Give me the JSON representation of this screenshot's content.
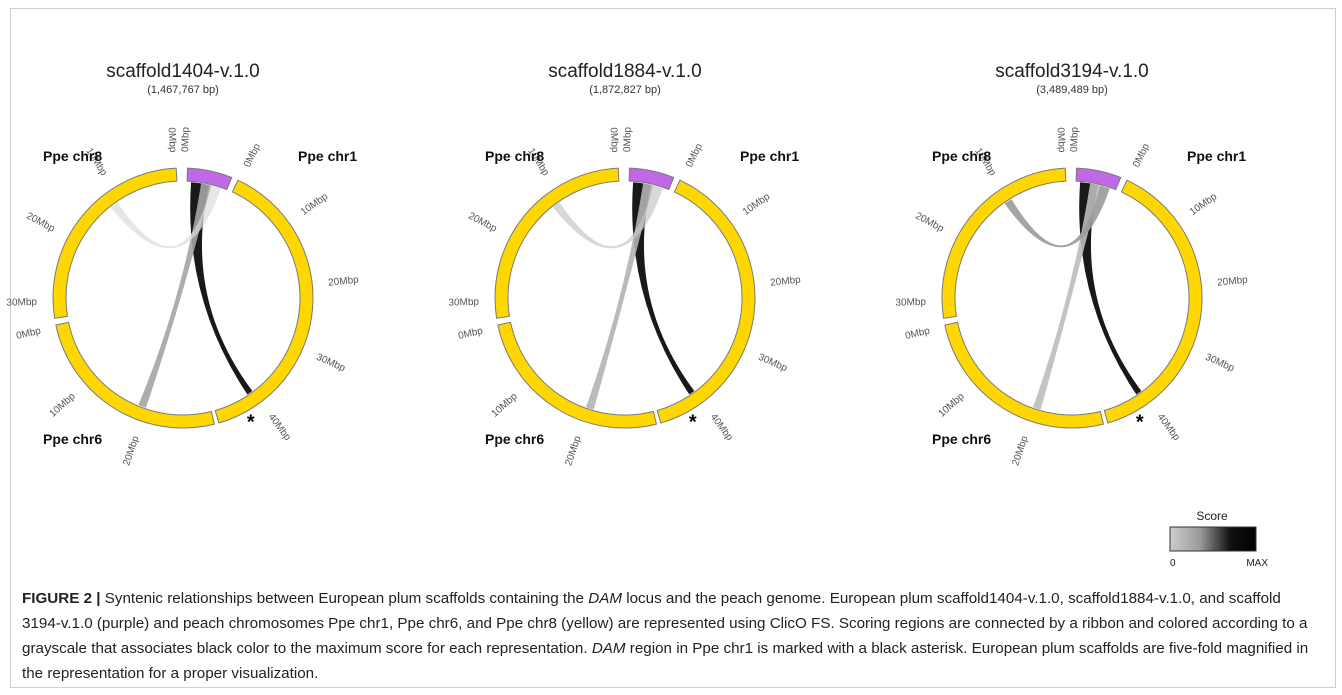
{
  "figure": {
    "panels": [
      {
        "title": "scaffold1404-v.1.0",
        "length": "(1,467,767 bp)",
        "ribbons": [
          {
            "from": "scaffold",
            "to": "Ppe chr1",
            "target_mbp": 40,
            "score": "max",
            "shade": "#000000"
          },
          {
            "from": "scaffold",
            "to": "Ppe chr6",
            "target_mbp": 20,
            "score": "low",
            "shade": "#a4a4a4"
          },
          {
            "from": "scaffold",
            "to": "Ppe chr8",
            "target_mbp": 12,
            "score": "min",
            "shade": "#dcdcdc"
          }
        ]
      },
      {
        "title": "scaffold1884-v.1.0",
        "length": "(1,872,827 bp)",
        "ribbons": [
          {
            "from": "scaffold",
            "to": "Ppe chr1",
            "target_mbp": 40,
            "score": "max",
            "shade": "#000000"
          },
          {
            "from": "scaffold",
            "to": "Ppe chr6",
            "target_mbp": 21,
            "score": "low",
            "shade": "#b3b3b3"
          },
          {
            "from": "scaffold",
            "to": "Ppe chr8",
            "target_mbp": 12,
            "score": "min",
            "shade": "#c8c8c8"
          }
        ]
      },
      {
        "title": "scaffold3194-v.1.0",
        "length": "(3,489,489 bp)",
        "ribbons": [
          {
            "from": "scaffold",
            "to": "Ppe chr1",
            "target_mbp": 40,
            "score": "max",
            "shade": "#000000"
          },
          {
            "from": "scaffold",
            "to": "Ppe chr6",
            "target_mbp": 21,
            "score": "low",
            "shade": "#bdbdbd"
          },
          {
            "from": "scaffold",
            "to": "Ppe chr8",
            "target_mbp": 11,
            "score": "mid",
            "shade": "#9a9a9a"
          }
        ]
      }
    ],
    "chromosome_labels": {
      "chr1": "Ppe chr1",
      "chr6": "Ppe chr6",
      "chr8": "Ppe chr8"
    },
    "chr1_ticks": [
      "0Mbp",
      "10Mbp",
      "20Mbp",
      "30Mbp",
      "40Mbp"
    ],
    "chr6_ticks": [
      "0Mbp",
      "10Mbp",
      "20Mbp"
    ],
    "chr8_ticks": [
      "0Mbp",
      "10Mbp",
      "20Mbp",
      "30Mbp"
    ],
    "asterisk": "*",
    "legend": {
      "title": "Score",
      "min": "0",
      "max": "MAX"
    },
    "colors": {
      "chromosome": "#FFD700",
      "scaffold": "#C069E6",
      "outline": "#7a7a7a"
    }
  },
  "caption": {
    "label": "FIGURE 2 |",
    "part1": " Syntenic relationships between European plum scaffolds containing the ",
    "em1": "DAM",
    "part2": " locus and the peach genome. European plum scaffold1404-v.1.0, scaffold1884-v.1.0, and scaffold 3194-v.1.0 (purple) and peach chromosomes Ppe chr1, Ppe chr6, and Ppe chr8 (yellow) are represented using ClicO FS. Scoring regions are connected by a ribbon and colored according to a grayscale that associates black color to the maximum score for each representation. ",
    "em2": "DAM",
    "part3": " region in Ppe chr1 is marked with a black asterisk. European plum scaffolds are five-fold magnified in the representation for a proper visualization."
  }
}
